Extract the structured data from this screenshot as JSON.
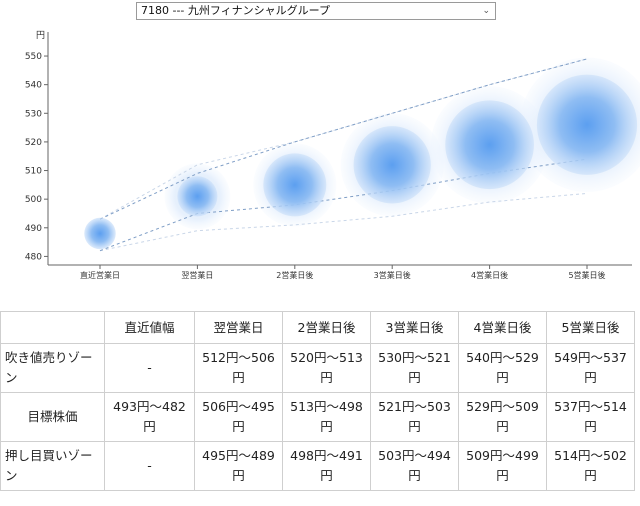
{
  "selector": {
    "value": "7180 --- 九州フィナンシャルグループ"
  },
  "chart_data": {
    "type": "scatter",
    "ylabel": "円",
    "ylim": [
      477,
      557
    ],
    "yticks": [
      480,
      490,
      500,
      510,
      520,
      530,
      540,
      550
    ],
    "categories": [
      "直近営業日",
      "翌営業日",
      "2営業日後",
      "3営業日後",
      "4営業日後",
      "5営業日後"
    ],
    "centers": [
      488,
      501,
      505,
      512,
      519,
      526
    ],
    "upper": [
      493,
      509,
      520,
      530,
      540,
      549
    ],
    "lower": [
      482,
      495,
      498,
      503,
      509,
      514
    ],
    "outer_upper": [
      493,
      512,
      520,
      530,
      540,
      549
    ],
    "outer_lower": [
      482,
      489,
      491,
      494,
      499,
      502
    ],
    "grid": false,
    "colors": {
      "core": "#4a8fe6",
      "halo": "#dbe9fb",
      "band": "#6f8fb8"
    }
  },
  "table": {
    "headers": [
      "",
      "直近値幅",
      "翌営業日",
      "2営業日後",
      "3営業日後",
      "4営業日後",
      "5営業日後"
    ],
    "rows": [
      {
        "label": "吹き値売りゾーン",
        "cells": [
          "-",
          "512円～506円",
          "520円～513円",
          "530円～521円",
          "540円～529円",
          "549円～537円"
        ]
      },
      {
        "label": "目標株価",
        "cells": [
          "493円～482円",
          "506円～495円",
          "513円～498円",
          "521円～503円",
          "529円～509円",
          "537円～514円"
        ]
      },
      {
        "label": "押し目買いゾーン",
        "cells": [
          "-",
          "495円～489円",
          "498円～491円",
          "503円～494円",
          "509円～499円",
          "514円～502円"
        ]
      }
    ]
  }
}
